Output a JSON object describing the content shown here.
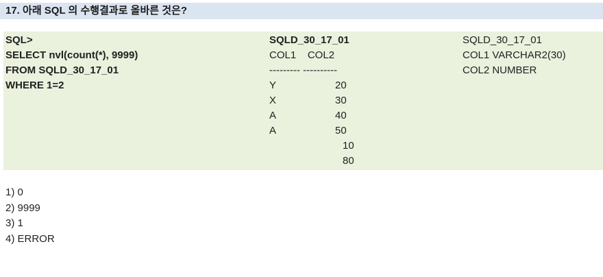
{
  "question": {
    "title": "17. 아래 SQL 의 수행결과로 올바른 것은?"
  },
  "sql_lines": [
    "SQL>",
    "SELECT nvl(count(*), 9999)",
    "FROM SQLD_30_17_01",
    "WHERE 1=2"
  ],
  "table": {
    "name": "SQLD_30_17_01",
    "header": "COL1    COL2",
    "separator": "--------- ----------",
    "rows": [
      {
        "col1": "Y",
        "col2": "20"
      },
      {
        "col1": "X",
        "col2": "30"
      },
      {
        "col1": "A",
        "col2": "40"
      },
      {
        "col1": "A",
        "col2": "50"
      },
      {
        "col1": "",
        "col2": "10"
      },
      {
        "col1": "",
        "col2": "80"
      }
    ]
  },
  "schema": {
    "name": "SQLD_30_17_01",
    "columns": [
      "COL1 VARCHAR2(30)",
      "COL2 NUMBER"
    ]
  },
  "options": [
    "1) 0",
    "2) 9999",
    "3) 1",
    "4) ERROR"
  ]
}
